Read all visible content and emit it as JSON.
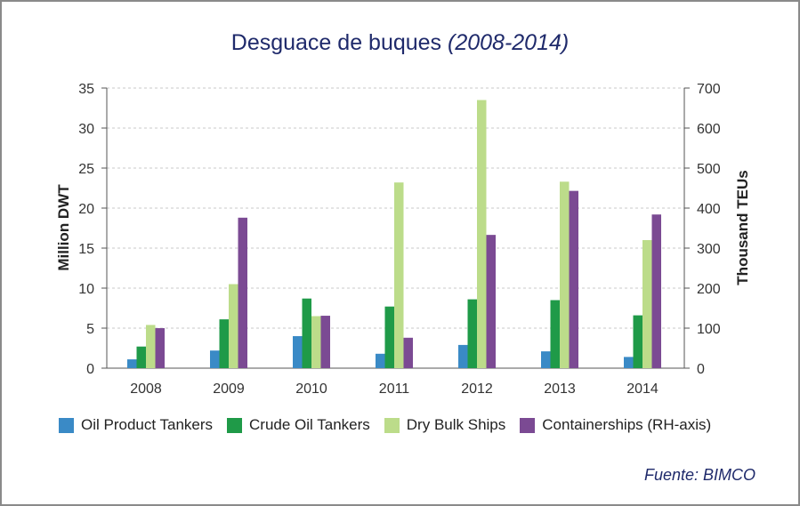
{
  "chart_data": {
    "type": "bar",
    "title": "Desguace de buques",
    "title_years": "(2008-2014)",
    "categories": [
      "2008",
      "2009",
      "2010",
      "2011",
      "2012",
      "2013",
      "2014"
    ],
    "series": [
      {
        "name": "Oil Product Tankers",
        "axis": "left",
        "color": "#3a8ac6",
        "values": [
          1.1,
          2.2,
          4.0,
          1.8,
          2.9,
          2.1,
          1.4
        ]
      },
      {
        "name": "Crude Oil Tankers",
        "axis": "left",
        "color": "#1f9a48",
        "values": [
          2.7,
          6.1,
          8.7,
          7.7,
          8.6,
          8.5,
          6.6
        ]
      },
      {
        "name": "Dry Bulk Ships",
        "axis": "left",
        "color": "#bcdc8a",
        "values": [
          5.4,
          10.5,
          6.5,
          23.2,
          33.5,
          23.3,
          16.0
        ]
      },
      {
        "name": "Containerships (RH-axis)",
        "axis": "right",
        "color": "#7b4a93",
        "values": [
          100,
          376,
          131,
          76,
          333,
          443,
          384
        ]
      }
    ],
    "ylabel": "Million DWT",
    "ylabel_right": "Thousand TEUs",
    "ylim": [
      0,
      35
    ],
    "ylim_right": [
      0,
      700
    ],
    "yticks": [
      "0",
      "5",
      "10",
      "15",
      "20",
      "25",
      "30",
      "35"
    ],
    "yticks_right": [
      "0",
      "100",
      "200",
      "300",
      "400",
      "500",
      "600",
      "700"
    ],
    "grid": true,
    "legend_position": "bottom"
  },
  "source": "Fuente: BIMCO"
}
